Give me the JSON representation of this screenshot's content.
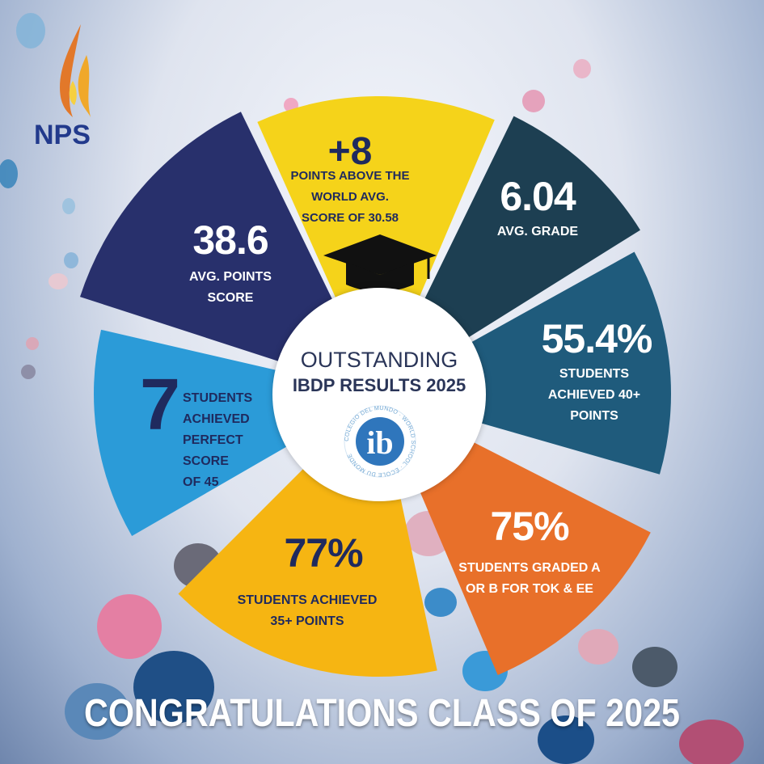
{
  "logo": {
    "text": "NPS"
  },
  "center": {
    "line1": "OUTSTANDING",
    "line2": "IBDP RESULTS 2025",
    "badge_text": "ib",
    "badge_ring": "COLEGIO DEL MUNDO · WORLD SCHOOL · ÉCOLE DU MONDE"
  },
  "segments": [
    {
      "key": "top",
      "value": "+8",
      "lines": [
        "POINTS ABOVE THE",
        "WORLD AVG.",
        "SCORE OF 30.58"
      ],
      "color": "#f5d31a"
    },
    {
      "key": "grade",
      "value": "6.04",
      "lines": [
        "AVG. GRADE"
      ],
      "color": "#1d3f52"
    },
    {
      "key": "forty",
      "value": "55.4%",
      "lines": [
        "STUDENTS",
        "ACHIEVED 40+",
        "POINTS"
      ],
      "color": "#1f5b7c"
    },
    {
      "key": "tok",
      "value": "75%",
      "lines": [
        "STUDENTS GRADED A",
        "OR B FOR TOK  & EE"
      ],
      "color": "#e8702a"
    },
    {
      "key": "thirtyfive",
      "value": "77%",
      "lines": [
        "STUDENTS ACHIEVED",
        "35+ POINTS"
      ],
      "color": "#f6b512"
    },
    {
      "key": "perfect",
      "value": "7",
      "lines": [
        "STUDENTS",
        "ACHIEVED",
        "PERFECT",
        "SCORE",
        "OF 45"
      ],
      "color": "#2b9bd8"
    },
    {
      "key": "avg",
      "value": "38.6",
      "lines": [
        "AVG. POINTS",
        "SCORE"
      ],
      "color": "#28306c"
    }
  ],
  "icons": {
    "cap": "graduation-cap-icon",
    "logo": "flame-logo-icon"
  },
  "footer": "CONGRATULATIONS CLASS OF 2025"
}
